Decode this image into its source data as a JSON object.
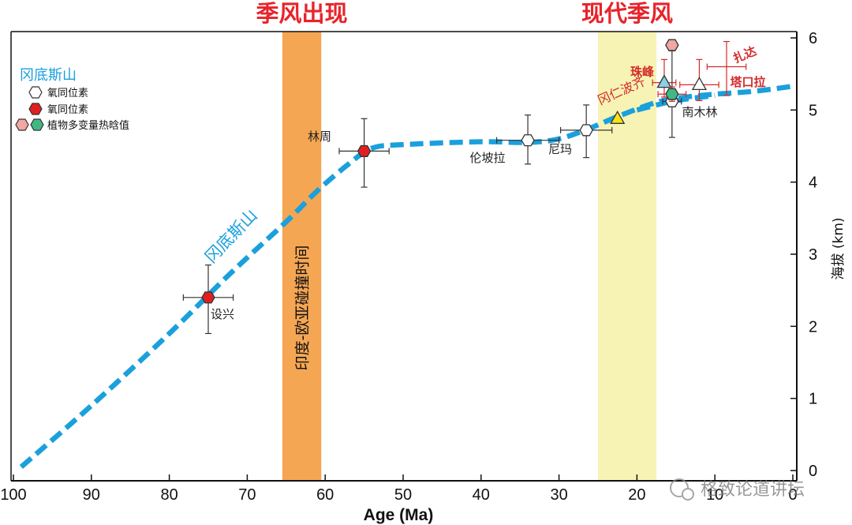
{
  "chart_data": {
    "type": "scatter",
    "xlabel": "Age (Ma)",
    "ylabel": "海拔 (km)",
    "xlim": [
      100,
      0
    ],
    "ylim": [
      0,
      6
    ],
    "x_ticks": [
      "100",
      "90",
      "80",
      "70",
      "60",
      "50",
      "40",
      "30",
      "20",
      "10",
      "0"
    ],
    "y_ticks": [
      "0",
      "1",
      "2",
      "3",
      "4",
      "5",
      "6"
    ],
    "bands": [
      {
        "label": "印度-欧亚碰撞时间",
        "x_from": 65.5,
        "x_to": 60.5,
        "color": "#f5a653",
        "header": "季风出现"
      },
      {
        "label": "",
        "x_from": 25,
        "x_to": 17.5,
        "color": "#f6f3b4",
        "header": "现代季风"
      }
    ],
    "curves": [
      {
        "name": "冈底斯山",
        "color": "#1aa0dc",
        "points": [
          [
            99,
            0.05
          ],
          [
            90,
            0.9
          ],
          [
            80,
            1.9
          ],
          [
            72,
            2.75
          ],
          [
            65,
            3.45
          ],
          [
            61,
            3.88
          ],
          [
            57,
            4.25
          ],
          [
            54,
            4.47
          ],
          [
            50,
            4.52
          ],
          [
            40,
            4.56
          ],
          [
            34,
            4.55
          ],
          [
            30,
            4.6
          ],
          [
            26,
            4.75
          ],
          [
            22,
            4.93
          ],
          [
            17,
            5.12
          ],
          [
            12,
            5.2
          ],
          [
            5,
            5.26
          ],
          [
            0,
            5.33
          ]
        ]
      },
      {
        "name": "冈仁波齐",
        "color": "#1aa0dc",
        "points": [
          [
            20,
            5.0
          ],
          [
            15,
            5.13
          ],
          [
            10,
            5.2
          ]
        ]
      }
    ],
    "points": [
      {
        "site": "设兴",
        "age": 75,
        "elev": 2.4,
        "marker": "hexagon",
        "fill": "#e02020",
        "xerr": 3.2,
        "yerr_lo": 0.5,
        "yerr_hi": 0.45,
        "errcolor": "#333"
      },
      {
        "site": "林周",
        "age": 55,
        "elev": 4.43,
        "marker": "hexagon",
        "fill": "#e02020",
        "xerr": 3.2,
        "yerr_lo": 0.5,
        "yerr_hi": 0.45,
        "errcolor": "#333"
      },
      {
        "site": "伦坡拉",
        "age": 34,
        "elev": 4.58,
        "marker": "hexagon",
        "fill": "#ffffff",
        "xerr": 4,
        "yerr_lo": 0.33,
        "yerr_hi": 0.35,
        "errcolor": "#333"
      },
      {
        "site": "尼玛",
        "age": 26.5,
        "elev": 4.72,
        "marker": "hexagon",
        "fill": "#ffffff",
        "xerr": 3.3,
        "yerr_lo": 0.38,
        "yerr_hi": 0.35,
        "errcolor": "#333"
      },
      {
        "site": "冈仁波齐",
        "age": 22.5,
        "elev": 4.88,
        "marker": "triangle",
        "fill": "#f5e318",
        "xerr": 0,
        "yerr_lo": 0,
        "yerr_hi": 0,
        "errcolor": "#333"
      },
      {
        "site": "珠峰",
        "age": 16.5,
        "elev": 5.38,
        "marker": "triangle",
        "fill": "#8ad2e4",
        "xerr": 1.5,
        "yerr_lo": 0.2,
        "yerr_hi": 0.32,
        "errcolor": "#d42a2a"
      },
      {
        "site": "",
        "age": 15.5,
        "elev": 5.9,
        "marker": "hexagon",
        "fill": "#f2a7a2",
        "xerr": 0,
        "yerr_lo": 0,
        "yerr_hi": 0,
        "errcolor": "#333"
      },
      {
        "site": "南木林",
        "age": 15.5,
        "elev": 5.12,
        "marker": "hexagon",
        "fill": "#ffffff",
        "xerr": 1.2,
        "yerr_lo": 0.5,
        "yerr_hi": 0.7,
        "errcolor": "#333"
      },
      {
        "site": "",
        "age": 15.5,
        "elev": 5.22,
        "marker": "hexagon",
        "fill": "#41b884",
        "xerr": 1.8,
        "yerr_lo": 0.1,
        "yerr_hi": 0.1,
        "errcolor": "#d42a2a"
      },
      {
        "site": "塔口拉",
        "age": 12,
        "elev": 5.35,
        "marker": "triangle",
        "fill": "#ffffff",
        "xerr": 2.5,
        "yerr_lo": 0.22,
        "yerr_hi": 0.35,
        "errcolor": "#d42a2a"
      },
      {
        "site": "扎达",
        "age": 8.5,
        "elev": 5.6,
        "marker": "none",
        "fill": "none",
        "xerr": 2.5,
        "yerr_lo": 0.4,
        "yerr_hi": 0.35,
        "errcolor": "#d42a2a"
      }
    ],
    "legend": {
      "title": "冈底斯山",
      "items": [
        "氧同位素",
        "氧同位素",
        "植物多变量热晗值"
      ]
    }
  },
  "watermark": "格致论道讲坛"
}
